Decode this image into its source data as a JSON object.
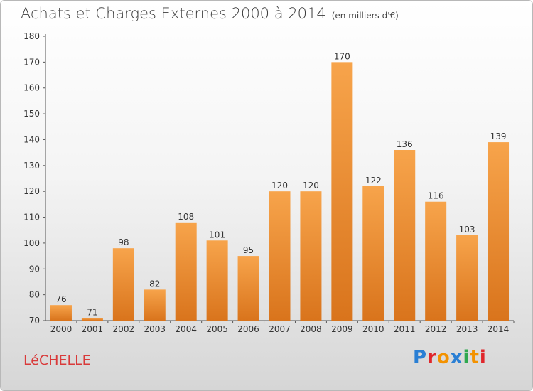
{
  "header": {
    "title": "Achats et Charges Externes 2000 à 2014",
    "unit": "(en milliers d'€)"
  },
  "footer": {
    "commune": "LéCHELLE",
    "logo": [
      "P",
      "r",
      "o",
      "x",
      "i",
      "t",
      "i"
    ],
    "logo_colors": [
      "#2a7fd4",
      "#e0262b",
      "#f39200",
      "#2a7fd4",
      "#2fa84f",
      "#f39200",
      "#e0262b"
    ]
  },
  "colors": {
    "bar_top": "#f7a44b",
    "bar_bottom": "#d9741c",
    "axis": "#555555"
  },
  "chart_data": {
    "type": "bar",
    "title": "Achats et Charges Externes 2000 à 2014",
    "xlabel": "",
    "ylabel": "",
    "categories": [
      "2000",
      "2001",
      "2002",
      "2003",
      "2004",
      "2005",
      "2006",
      "2007",
      "2008",
      "2009",
      "2010",
      "2011",
      "2012",
      "2013",
      "2014"
    ],
    "values": [
      76,
      71,
      98,
      82,
      108,
      101,
      95,
      120,
      120,
      170,
      122,
      136,
      116,
      103,
      139
    ],
    "ylim": [
      70,
      180
    ],
    "yticks": [
      70,
      80,
      90,
      100,
      110,
      120,
      130,
      140,
      150,
      160,
      170,
      180
    ],
    "grid": false,
    "legend": "none"
  }
}
